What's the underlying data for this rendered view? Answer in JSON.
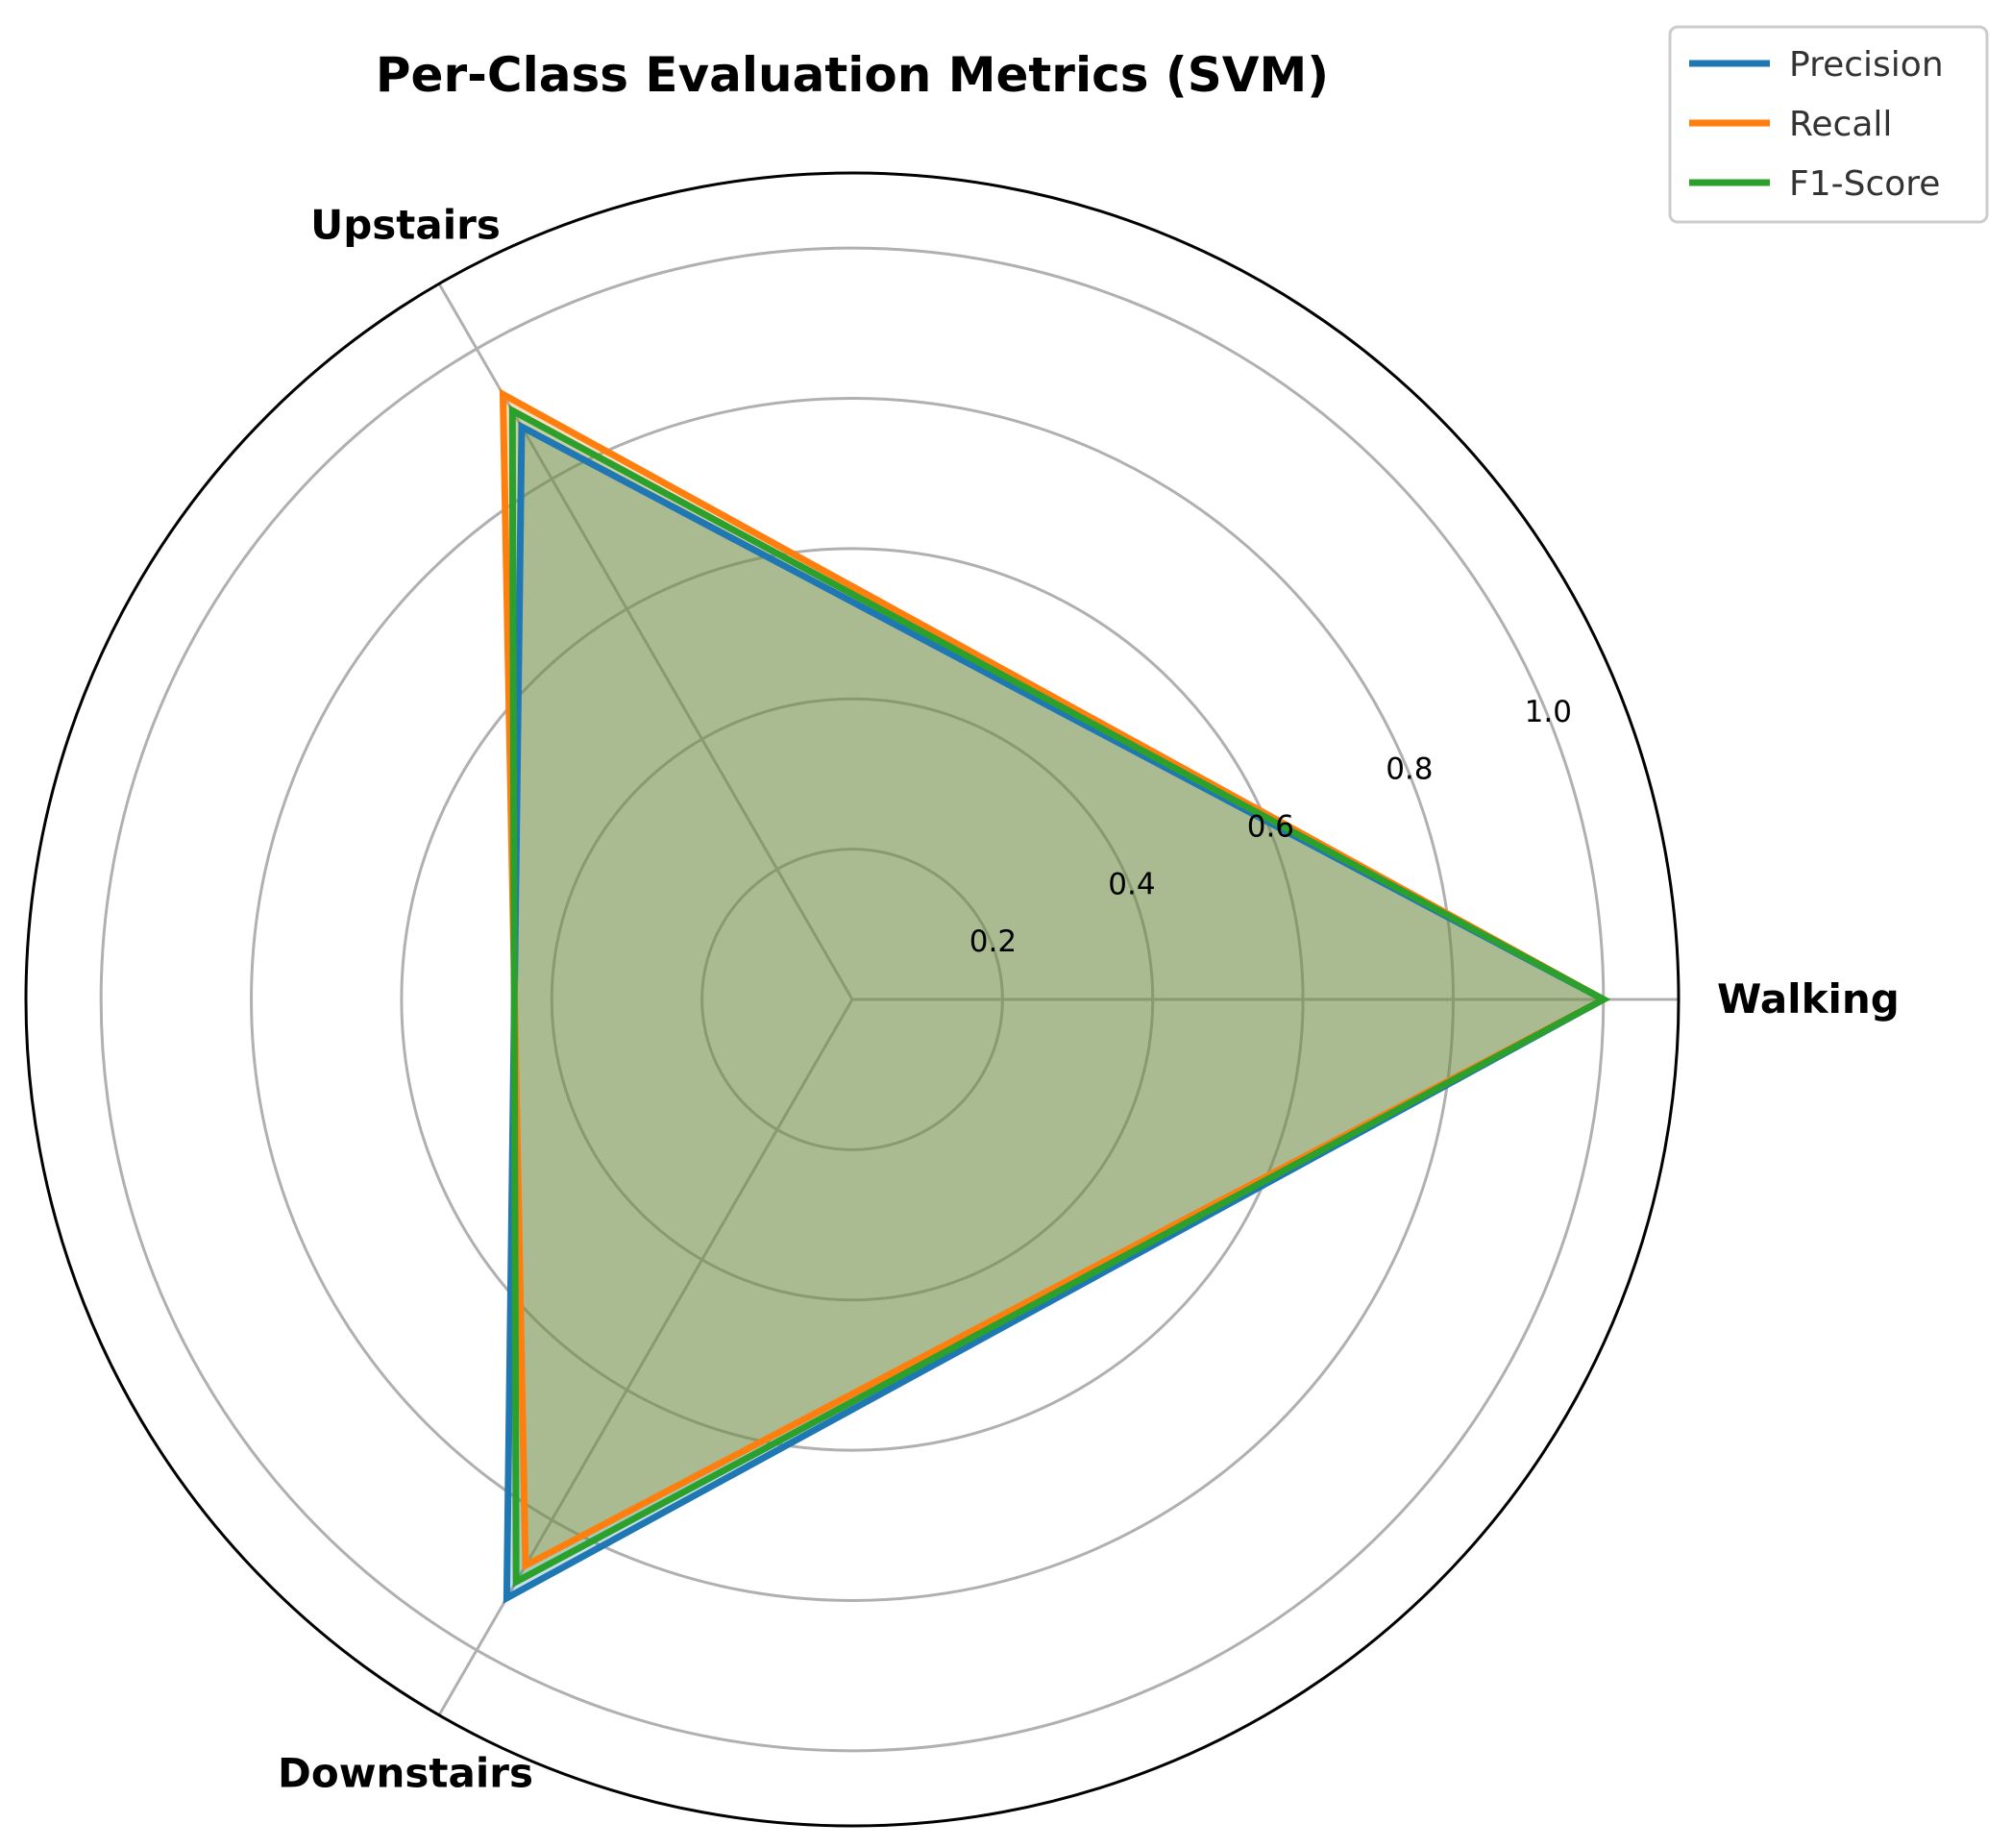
{
  "chart_data": {
    "type": "radar",
    "title": "Per-Class Evaluation Metrics (SVM)",
    "categories": [
      "Walking",
      "Upstairs",
      "Downstairs"
    ],
    "rlim": [
      0,
      1.1
    ],
    "rticks": [
      0.2,
      0.4,
      0.6,
      0.8,
      1.0
    ],
    "rtick_labels": [
      "0.2",
      "0.4",
      "0.6",
      "0.8",
      "1.0"
    ],
    "grid": true,
    "legend_position": "top-right",
    "fill_color": "#b7c4a4",
    "series": [
      {
        "name": "Precision",
        "color": "#1f77b4",
        "values": [
          1.0,
          0.88,
          0.92
        ]
      },
      {
        "name": "Recall",
        "color": "#ff7f0e",
        "values": [
          1.0,
          0.93,
          0.87
        ]
      },
      {
        "name": "F1-Score",
        "color": "#2ca02c",
        "values": [
          1.0,
          0.905,
          0.895
        ]
      }
    ]
  }
}
